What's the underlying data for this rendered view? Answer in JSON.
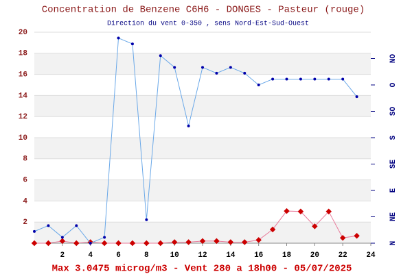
{
  "chart_data": {
    "type": "line",
    "title": "Concentration de Benzene C6H6  -   DONGES - Pasteur (rouge)",
    "subtitle": "Direction du vent 0-350 , sens Nord-Est-Sud-Ouest",
    "footer": "Max 3.0475 microg/m3 - Vent 280  a 18h00 - 05/07/2025",
    "x": [
      0,
      1,
      2,
      3,
      4,
      5,
      6,
      7,
      8,
      9,
      10,
      11,
      12,
      13,
      14,
      15,
      16,
      17,
      18,
      19,
      20,
      21,
      22,
      23
    ],
    "series": [
      {
        "name": "Benzene",
        "color": "#cc0000",
        "line_color": "#e87a9a",
        "values": [
          0,
          0,
          0.2,
          0,
          0.1,
          0,
          0,
          0,
          0,
          0,
          0.1,
          0.1,
          0.2,
          0.2,
          0.1,
          0.1,
          0.3,
          1.3,
          3.0475,
          3.0,
          1.6,
          3.0,
          0.5,
          0.7
        ]
      },
      {
        "name": "Vent",
        "color": "#0000aa",
        "line_color": "#6aa8e8",
        "axis": "y2",
        "values": [
          20,
          30,
          10,
          30,
          0,
          10,
          350,
          340,
          40,
          320,
          300,
          200,
          300,
          290,
          300,
          290,
          270,
          280,
          280,
          280,
          280,
          280,
          280,
          250
        ]
      }
    ],
    "xlim": [
      0,
      24
    ],
    "xticks": [
      2,
      4,
      6,
      8,
      10,
      12,
      14,
      16,
      18,
      20,
      22,
      24
    ],
    "ylim": [
      0,
      20
    ],
    "yticks": [
      2,
      4,
      6,
      8,
      10,
      12,
      14,
      16,
      18,
      20
    ],
    "y2lim": [
      0,
      360
    ],
    "y2ticks": [
      {
        "value": 0,
        "label": "N"
      },
      {
        "value": 45,
        "label": "NE"
      },
      {
        "value": 90,
        "label": "E"
      },
      {
        "value": 135,
        "label": "SE"
      },
      {
        "value": 180,
        "label": "S"
      },
      {
        "value": 225,
        "label": "SO"
      },
      {
        "value": 270,
        "label": "O"
      },
      {
        "value": 315,
        "label": "NO"
      }
    ],
    "grid": true
  }
}
